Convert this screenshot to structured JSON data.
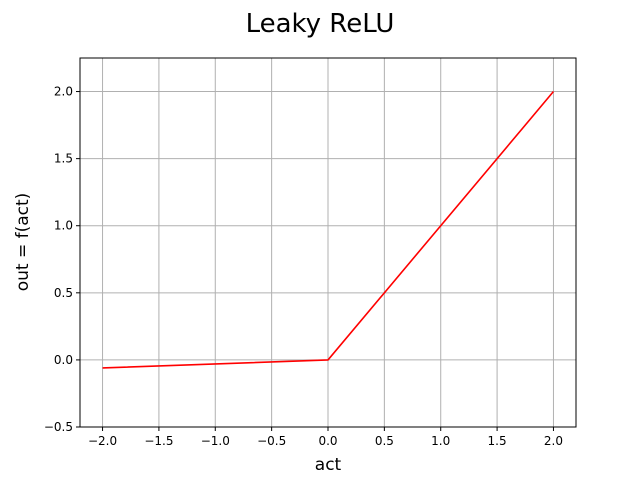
{
  "chart_data": {
    "type": "line",
    "title": "Leaky ReLU",
    "xlabel": "act",
    "ylabel": "out = f(act)",
    "xlim": [
      -2.2,
      2.2
    ],
    "ylim": [
      -0.5,
      2.25
    ],
    "grid": true,
    "xticks": [
      -2.0,
      -1.5,
      -1.0,
      -0.5,
      0.0,
      0.5,
      1.0,
      1.5,
      2.0
    ],
    "xtick_labels": [
      "−2.0",
      "−1.5",
      "−1.0",
      "−0.5",
      "0.0",
      "0.5",
      "1.0",
      "1.5",
      "2.0"
    ],
    "yticks": [
      -0.5,
      0.0,
      0.5,
      1.0,
      1.5,
      2.0
    ],
    "ytick_labels": [
      "−0.5",
      "0.0",
      "0.5",
      "1.0",
      "1.5",
      "2.0"
    ],
    "series": [
      {
        "color": "#ff0000",
        "x": [
          -2.0,
          0.0,
          2.0
        ],
        "y": [
          -0.06,
          0.0,
          2.0
        ]
      }
    ]
  }
}
